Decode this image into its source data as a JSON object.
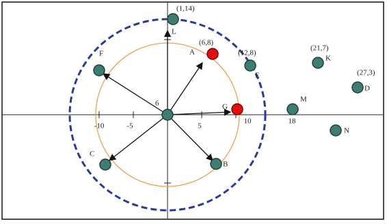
{
  "points": {
    "L": "L",
    "A": "A",
    "E": "E",
    "K": "K",
    "D": "D",
    "F": "F",
    "G": "G",
    "M": "M",
    "N": "N",
    "C": "C",
    "B": "B"
  },
  "coordinates": {
    "L": "(1,14)",
    "A": "(6,8)",
    "E": "(12,8)",
    "K": "(21,7)",
    "D": "(27,3)"
  },
  "center_label": "6",
  "axis_labels": [
    "-10",
    "-5",
    "5",
    "10",
    "18"
  ]
}
